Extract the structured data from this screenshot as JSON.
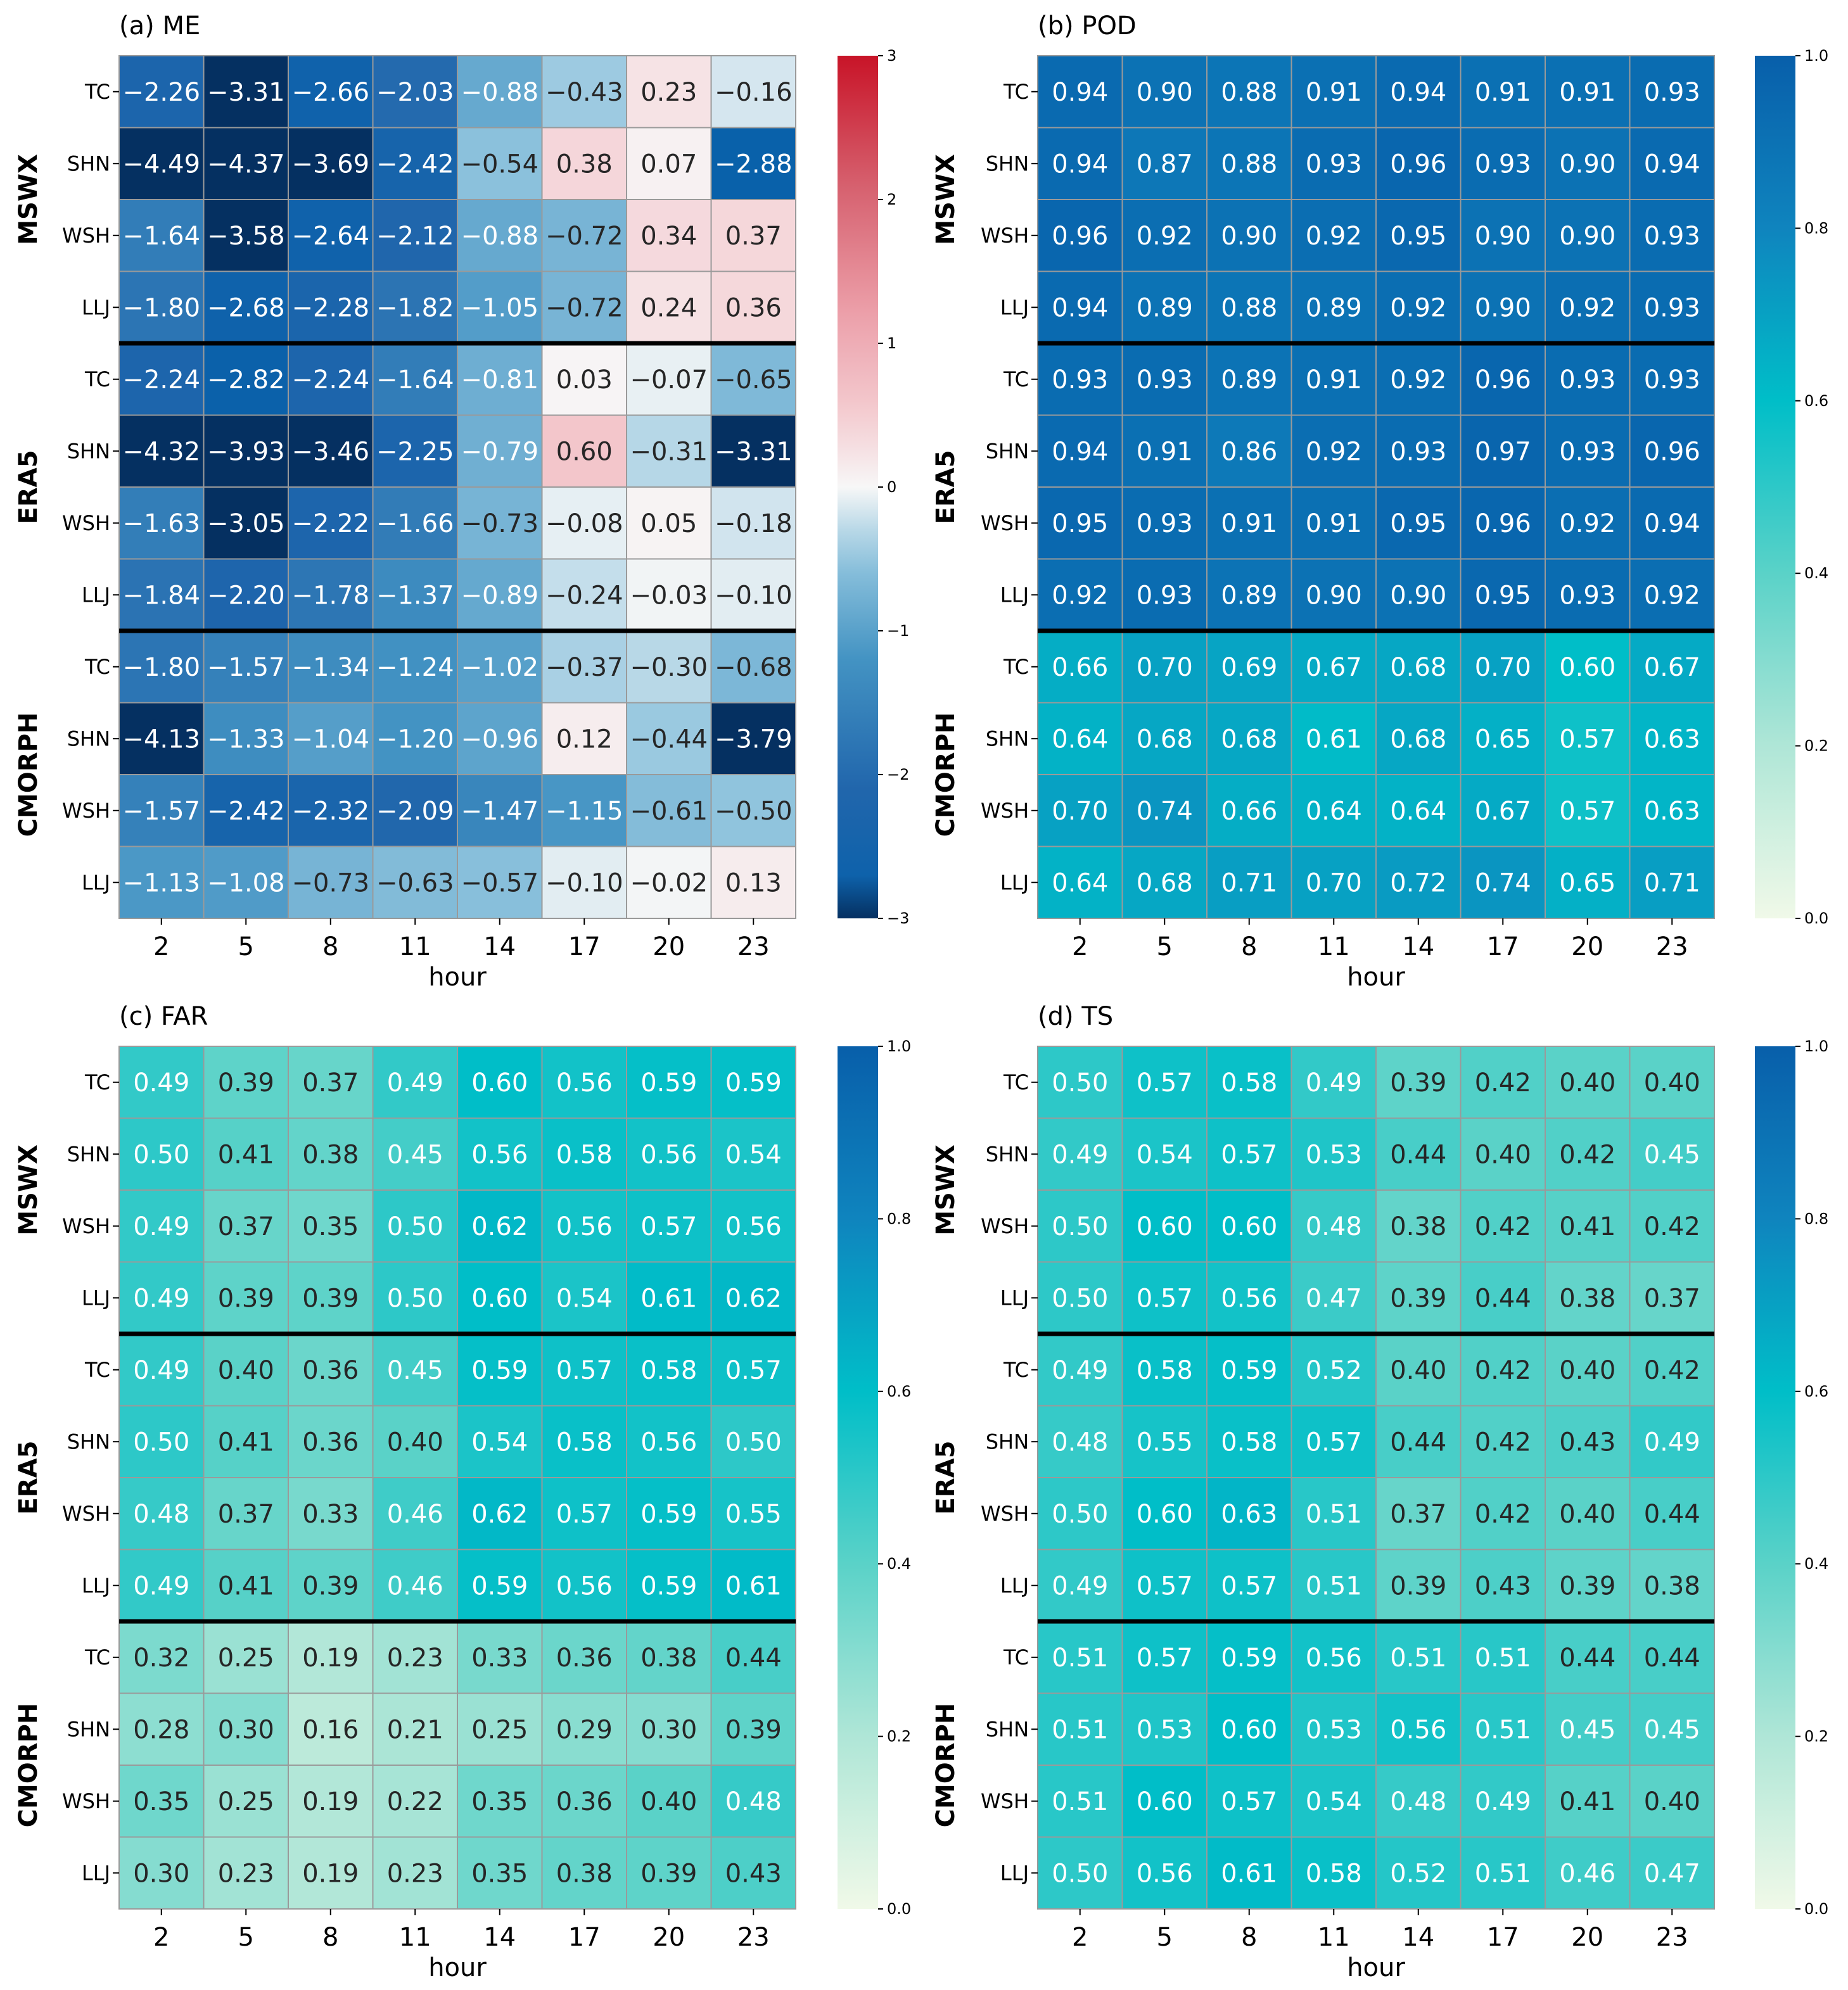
{
  "chart_data": [
    {
      "type": "heatmap",
      "title": "(a) ME",
      "xlabel": "hour",
      "x_ticks": [
        "2",
        "5",
        "8",
        "11",
        "14",
        "17",
        "20",
        "23"
      ],
      "groups": [
        "MSWX",
        "ERA5",
        "CMORPH"
      ],
      "rows": [
        "TC",
        "SHN",
        "WSH",
        "LLJ",
        "TC",
        "SHN",
        "WSH",
        "LLJ",
        "TC",
        "SHN",
        "WSH",
        "LLJ"
      ],
      "colormap": "diverging-red-blue",
      "colorbar": {
        "min": -3,
        "max": 3,
        "ticks": [
          "3",
          "2",
          "1",
          "0",
          "−1",
          "−2",
          "−3"
        ]
      },
      "values": [
        [
          -2.26,
          -3.31,
          -2.66,
          -2.03,
          -0.88,
          -0.43,
          0.23,
          -0.16
        ],
        [
          -4.49,
          -4.37,
          -3.69,
          -2.42,
          -0.54,
          0.38,
          0.07,
          -2.88
        ],
        [
          -1.64,
          -3.58,
          -2.64,
          -2.12,
          -0.88,
          -0.72,
          0.34,
          0.37
        ],
        [
          -1.8,
          -2.68,
          -2.28,
          -1.82,
          -1.05,
          -0.72,
          0.24,
          0.36
        ],
        [
          -2.24,
          -2.82,
          -2.24,
          -1.64,
          -0.81,
          0.03,
          -0.07,
          -0.65
        ],
        [
          -4.32,
          -3.93,
          -3.46,
          -2.25,
          -0.79,
          0.6,
          -0.31,
          -3.31
        ],
        [
          -1.63,
          -3.05,
          -2.22,
          -1.66,
          -0.73,
          -0.08,
          0.05,
          -0.18
        ],
        [
          -1.84,
          -2.2,
          -1.78,
          -1.37,
          -0.89,
          -0.24,
          -0.03,
          -0.1
        ],
        [
          -1.8,
          -1.57,
          -1.34,
          -1.24,
          -1.02,
          -0.37,
          -0.3,
          -0.68
        ],
        [
          -4.13,
          -1.33,
          -1.04,
          -1.2,
          -0.96,
          0.12,
          -0.44,
          -3.79
        ],
        [
          -1.57,
          -2.42,
          -2.32,
          -2.09,
          -1.47,
          -1.15,
          -0.61,
          -0.5
        ],
        [
          -1.13,
          -1.08,
          -0.73,
          -0.63,
          -0.57,
          -0.1,
          -0.02,
          0.13
        ]
      ]
    },
    {
      "type": "heatmap",
      "title": "(b) POD",
      "xlabel": "hour",
      "x_ticks": [
        "2",
        "5",
        "8",
        "11",
        "14",
        "17",
        "20",
        "23"
      ],
      "groups": [
        "MSWX",
        "ERA5",
        "CMORPH"
      ],
      "rows": [
        "TC",
        "SHN",
        "WSH",
        "LLJ",
        "TC",
        "SHN",
        "WSH",
        "LLJ",
        "TC",
        "SHN",
        "WSH",
        "LLJ"
      ],
      "colormap": "green-cyan-blue",
      "colorbar": {
        "min": 0,
        "max": 1,
        "ticks": [
          "1.0",
          "0.8",
          "0.6",
          "0.4",
          "0.2",
          "0.0"
        ]
      },
      "values": [
        [
          0.94,
          0.9,
          0.88,
          0.91,
          0.94,
          0.91,
          0.91,
          0.93
        ],
        [
          0.94,
          0.87,
          0.88,
          0.93,
          0.96,
          0.93,
          0.9,
          0.94
        ],
        [
          0.96,
          0.92,
          0.9,
          0.92,
          0.95,
          0.9,
          0.9,
          0.93
        ],
        [
          0.94,
          0.89,
          0.88,
          0.89,
          0.92,
          0.9,
          0.92,
          0.93
        ],
        [
          0.93,
          0.93,
          0.89,
          0.91,
          0.92,
          0.96,
          0.93,
          0.93
        ],
        [
          0.94,
          0.91,
          0.86,
          0.92,
          0.93,
          0.97,
          0.93,
          0.96
        ],
        [
          0.95,
          0.93,
          0.91,
          0.91,
          0.95,
          0.96,
          0.92,
          0.94
        ],
        [
          0.92,
          0.93,
          0.89,
          0.9,
          0.9,
          0.95,
          0.93,
          0.92
        ],
        [
          0.66,
          0.7,
          0.69,
          0.67,
          0.68,
          0.7,
          0.6,
          0.67
        ],
        [
          0.64,
          0.68,
          0.68,
          0.61,
          0.68,
          0.65,
          0.57,
          0.63
        ],
        [
          0.7,
          0.74,
          0.66,
          0.64,
          0.64,
          0.67,
          0.57,
          0.63
        ],
        [
          0.64,
          0.68,
          0.71,
          0.7,
          0.72,
          0.74,
          0.65,
          0.71
        ]
      ]
    },
    {
      "type": "heatmap",
      "title": "(c) FAR",
      "xlabel": "hour",
      "x_ticks": [
        "2",
        "5",
        "8",
        "11",
        "14",
        "17",
        "20",
        "23"
      ],
      "groups": [
        "MSWX",
        "ERA5",
        "CMORPH"
      ],
      "rows": [
        "TC",
        "SHN",
        "WSH",
        "LLJ",
        "TC",
        "SHN",
        "WSH",
        "LLJ",
        "TC",
        "SHN",
        "WSH",
        "LLJ"
      ],
      "colormap": "green-cyan-blue",
      "colorbar": {
        "min": 0,
        "max": 1,
        "ticks": [
          "1.0",
          "0.8",
          "0.6",
          "0.4",
          "0.2",
          "0.0"
        ]
      },
      "values": [
        [
          0.49,
          0.39,
          0.37,
          0.49,
          0.6,
          0.56,
          0.59,
          0.59
        ],
        [
          0.5,
          0.41,
          0.38,
          0.45,
          0.56,
          0.58,
          0.56,
          0.54
        ],
        [
          0.49,
          0.37,
          0.35,
          0.5,
          0.62,
          0.56,
          0.57,
          0.56
        ],
        [
          0.49,
          0.39,
          0.39,
          0.5,
          0.6,
          0.54,
          0.61,
          0.62
        ],
        [
          0.49,
          0.4,
          0.36,
          0.45,
          0.59,
          0.57,
          0.58,
          0.57
        ],
        [
          0.5,
          0.41,
          0.36,
          0.4,
          0.54,
          0.58,
          0.56,
          0.5
        ],
        [
          0.48,
          0.37,
          0.33,
          0.46,
          0.62,
          0.57,
          0.59,
          0.55
        ],
        [
          0.49,
          0.41,
          0.39,
          0.46,
          0.59,
          0.56,
          0.59,
          0.61
        ],
        [
          0.32,
          0.25,
          0.19,
          0.23,
          0.33,
          0.36,
          0.38,
          0.44
        ],
        [
          0.28,
          0.3,
          0.16,
          0.21,
          0.25,
          0.29,
          0.3,
          0.39
        ],
        [
          0.35,
          0.25,
          0.19,
          0.22,
          0.35,
          0.36,
          0.4,
          0.48
        ],
        [
          0.3,
          0.23,
          0.19,
          0.23,
          0.35,
          0.38,
          0.39,
          0.43
        ]
      ]
    },
    {
      "type": "heatmap",
      "title": "(d) TS",
      "xlabel": "hour",
      "x_ticks": [
        "2",
        "5",
        "8",
        "11",
        "14",
        "17",
        "20",
        "23"
      ],
      "groups": [
        "MSWX",
        "ERA5",
        "CMORPH"
      ],
      "rows": [
        "TC",
        "SHN",
        "WSH",
        "LLJ",
        "TC",
        "SHN",
        "WSH",
        "LLJ",
        "TC",
        "SHN",
        "WSH",
        "LLJ"
      ],
      "colormap": "green-cyan-blue",
      "colorbar": {
        "min": 0,
        "max": 1,
        "ticks": [
          "1.0",
          "0.8",
          "0.6",
          "0.4",
          "0.2",
          "0.0"
        ]
      },
      "values": [
        [
          0.5,
          0.57,
          0.58,
          0.49,
          0.39,
          0.42,
          0.4,
          0.4
        ],
        [
          0.49,
          0.54,
          0.57,
          0.53,
          0.44,
          0.4,
          0.42,
          0.45
        ],
        [
          0.5,
          0.6,
          0.6,
          0.48,
          0.38,
          0.42,
          0.41,
          0.42
        ],
        [
          0.5,
          0.57,
          0.56,
          0.47,
          0.39,
          0.44,
          0.38,
          0.37
        ],
        [
          0.49,
          0.58,
          0.59,
          0.52,
          0.4,
          0.42,
          0.4,
          0.42
        ],
        [
          0.48,
          0.55,
          0.58,
          0.57,
          0.44,
          0.42,
          0.43,
          0.49
        ],
        [
          0.5,
          0.6,
          0.63,
          0.51,
          0.37,
          0.42,
          0.4,
          0.44
        ],
        [
          0.49,
          0.57,
          0.57,
          0.51,
          0.39,
          0.43,
          0.39,
          0.38
        ],
        [
          0.51,
          0.57,
          0.59,
          0.56,
          0.51,
          0.51,
          0.44,
          0.44
        ],
        [
          0.51,
          0.53,
          0.6,
          0.53,
          0.56,
          0.51,
          0.45,
          0.45
        ],
        [
          0.51,
          0.6,
          0.57,
          0.54,
          0.48,
          0.49,
          0.41,
          0.4
        ],
        [
          0.5,
          0.56,
          0.61,
          0.58,
          0.52,
          0.51,
          0.46,
          0.47
        ]
      ]
    }
  ]
}
